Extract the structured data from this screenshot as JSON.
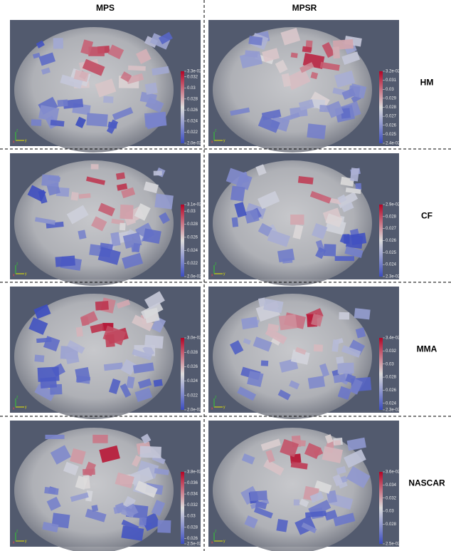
{
  "columns": [
    "MPS",
    "MPSR"
  ],
  "triad": [
    "x",
    "y",
    "z"
  ],
  "rows": [
    {
      "label": "HM",
      "panels": [
        {
          "colorbar": [
            "3.3e-02",
            "0.032",
            "0.03",
            "0.028",
            "0.026",
            "0.024",
            "0.022",
            "2.0e-02"
          ]
        },
        {
          "colorbar": [
            "3.2e-02",
            "0.031",
            "0.03",
            "0.029",
            "0.028",
            "0.027",
            "0.026",
            "0.025",
            "2.4e-02"
          ]
        }
      ]
    },
    {
      "label": "CF",
      "panels": [
        {
          "colorbar": [
            "3.1e-02",
            "0.03",
            "0.028",
            "0.026",
            "0.024",
            "0.022",
            "2.0e-02"
          ]
        },
        {
          "colorbar": [
            "2.9e-02",
            "0.028",
            "0.027",
            "0.026",
            "0.025",
            "0.024",
            "2.3e-02"
          ]
        }
      ]
    },
    {
      "label": "MMA",
      "panels": [
        {
          "colorbar": [
            "3.0e-02",
            "0.028",
            "0.026",
            "0.024",
            "0.022",
            "2.0e-02"
          ]
        },
        {
          "colorbar": [
            "3.4e-02",
            "0.032",
            "0.03",
            "0.028",
            "0.026",
            "0.024",
            "2.3e-02"
          ]
        }
      ]
    },
    {
      "label": "NASCAR",
      "panels": [
        {
          "colorbar": [
            "3.8e-02",
            "0.036",
            "0.034",
            "0.032",
            "0.03",
            "0.028",
            "0.026",
            "2.5e-02"
          ]
        },
        {
          "colorbar": [
            "3.6e-02",
            "0.034",
            "0.032",
            "0.03",
            "0.028",
            "2.5e-02"
          ]
        }
      ]
    }
  ]
}
